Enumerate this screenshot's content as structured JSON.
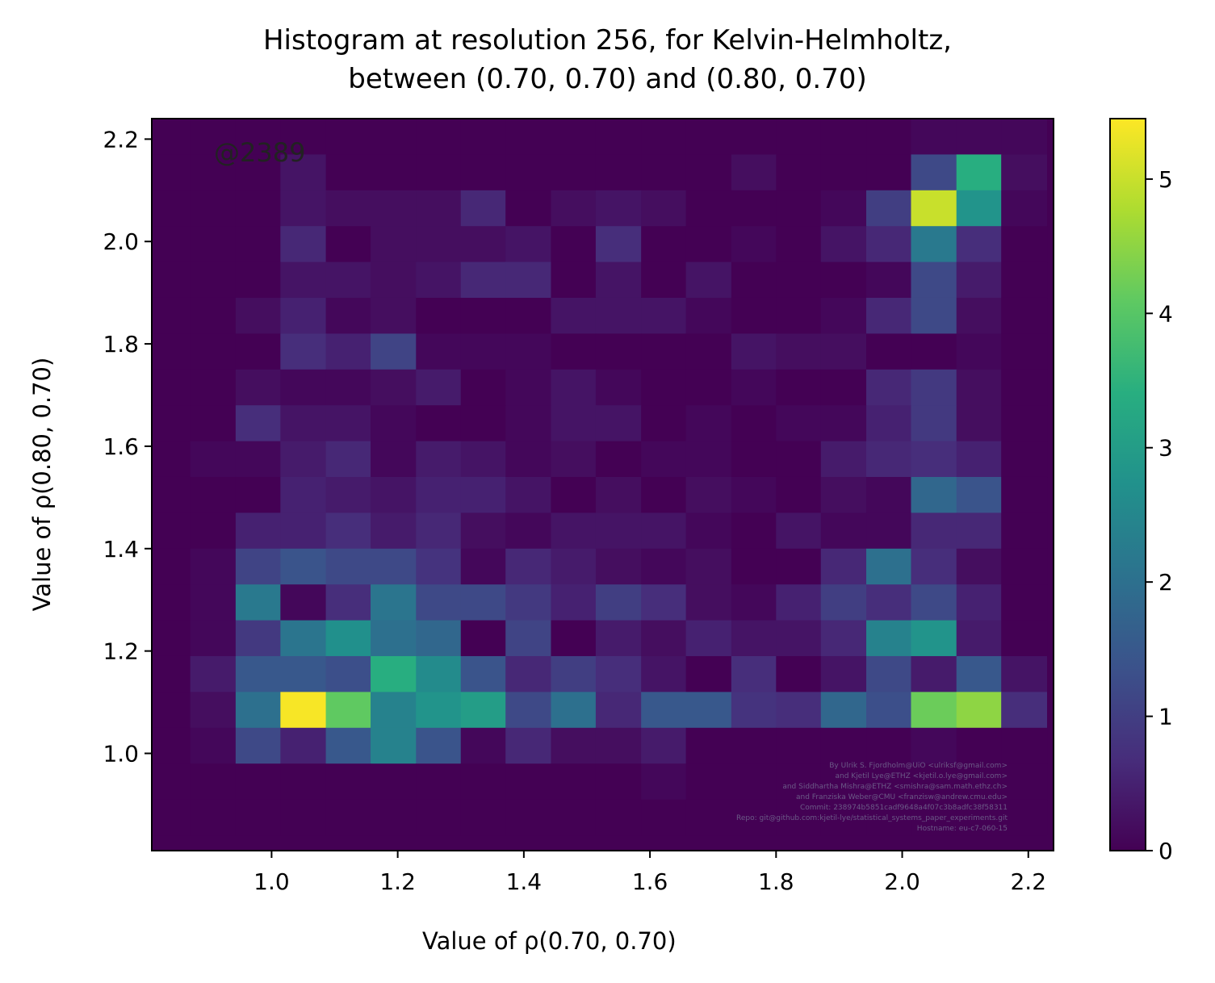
{
  "chart_data": {
    "type": "heatmap",
    "title_lines": [
      "Histogram at resolution 256, for Kelvin-Helmholtz,",
      "between (0.70, 0.70) and (0.80, 0.70)"
    ],
    "xlabel": "Value of ρ(0.70, 0.70)",
    "ylabel": "Value of ρ(0.80, 0.70)",
    "annotation": "@2389",
    "xlim": [
      0.81,
      2.24
    ],
    "ylim": [
      0.81,
      2.24
    ],
    "x_ticks": [
      "1.0",
      "1.2",
      "1.4",
      "1.6",
      "1.8",
      "2.0",
      "2.2"
    ],
    "y_ticks": [
      "1.0",
      "1.2",
      "1.4",
      "1.6",
      "1.8",
      "2.0",
      "2.2"
    ],
    "colorbar": {
      "min": 0,
      "max": 5.45,
      "ticks": [
        "0",
        "1",
        "2",
        "3",
        "4",
        "5"
      ],
      "colormap": "viridis"
    },
    "bins": {
      "x_edges": [
        0.8,
        0.871,
        0.943,
        1.014,
        1.086,
        1.157,
        1.229,
        1.3,
        1.371,
        1.443,
        1.514,
        1.586,
        1.657,
        1.729,
        1.8,
        1.871,
        1.943,
        2.014,
        2.086,
        2.157,
        2.229
      ],
      "y_edges_top_to_bottom": [
        2.24,
        2.17,
        2.1,
        2.03,
        1.96,
        1.89,
        1.82,
        1.75,
        1.68,
        1.61,
        1.54,
        1.47,
        1.4,
        1.33,
        1.26,
        1.19,
        1.12,
        1.05,
        0.98,
        0.91,
        0.84
      ]
    },
    "values_top_to_bottom": [
      [
        0,
        0,
        0,
        0,
        0,
        0,
        0,
        0,
        0,
        0,
        0,
        0,
        0,
        0,
        0,
        0,
        0,
        0.1,
        0.1,
        0.1
      ],
      [
        0,
        0,
        0,
        0.3,
        0,
        0,
        0,
        0,
        0,
        0,
        0,
        0,
        0,
        0.2,
        0,
        0,
        0,
        1.2,
        3.4,
        0.2
      ],
      [
        0,
        0,
        0,
        0.3,
        0.2,
        0.2,
        0.2,
        0.6,
        0,
        0.2,
        0.3,
        0.2,
        0,
        0,
        0,
        0.1,
        1.0,
        5.0,
        2.8,
        0.1
      ],
      [
        0,
        0,
        0,
        0.6,
        0,
        0.2,
        0.2,
        0.2,
        0.3,
        0,
        0.7,
        0,
        0,
        0.1,
        0,
        0.3,
        0.6,
        2.2,
        0.7,
        0
      ],
      [
        0,
        0,
        0,
        0.3,
        0.3,
        0.2,
        0.3,
        0.6,
        0.6,
        0,
        0.3,
        0,
        0.3,
        0,
        0,
        0,
        0.1,
        1.2,
        0.4,
        0
      ],
      [
        0,
        0,
        0.2,
        0.5,
        0.1,
        0.2,
        0,
        0,
        0,
        0.3,
        0.3,
        0.3,
        0.1,
        0,
        0,
        0.1,
        0.6,
        1.2,
        0.2,
        0
      ],
      [
        0,
        0,
        0,
        0.7,
        0.5,
        1.1,
        0.1,
        0.1,
        0.1,
        0,
        0,
        0,
        0,
        0.3,
        0.2,
        0.2,
        0,
        0,
        0.1,
        0
      ],
      [
        0,
        0,
        0.2,
        0.1,
        0.1,
        0.2,
        0.4,
        0,
        0.1,
        0.3,
        0.1,
        0,
        0,
        0.1,
        0,
        0,
        0.6,
        0.9,
        0.2,
        0
      ],
      [
        0,
        0,
        0.7,
        0.3,
        0.3,
        0.1,
        0,
        0,
        0.1,
        0.3,
        0.3,
        0,
        0.1,
        0,
        0.1,
        0.1,
        0.5,
        0.9,
        0.2,
        0
      ],
      [
        0,
        0.1,
        0.1,
        0.4,
        0.6,
        0.1,
        0.4,
        0.3,
        0.1,
        0.2,
        0,
        0.1,
        0.1,
        0,
        0,
        0.4,
        0.6,
        0.7,
        0.5,
        0
      ],
      [
        0,
        0,
        0,
        0.5,
        0.4,
        0.3,
        0.5,
        0.5,
        0.3,
        0,
        0.2,
        0,
        0.2,
        0.1,
        0,
        0.2,
        0.1,
        1.8,
        1.4,
        0
      ],
      [
        0,
        0,
        0.5,
        0.5,
        0.7,
        0.4,
        0.6,
        0.2,
        0.1,
        0.3,
        0.3,
        0.3,
        0.1,
        0,
        0.3,
        0.1,
        0.1,
        0.6,
        0.6,
        0
      ],
      [
        0,
        0.1,
        1.1,
        1.4,
        1.2,
        1.2,
        0.8,
        0.1,
        0.6,
        0.4,
        0.2,
        0.1,
        0.2,
        0,
        0,
        0.6,
        2.0,
        0.7,
        0.2,
        0
      ],
      [
        0,
        0.1,
        2.2,
        0.1,
        0.7,
        2.1,
        1.2,
        1.2,
        0.9,
        0.5,
        1.0,
        0.7,
        0.2,
        0.1,
        0.5,
        1.0,
        0.7,
        1.2,
        0.5,
        0
      ],
      [
        0,
        0.1,
        0.9,
        2.1,
        2.7,
        2.0,
        1.8,
        0,
        1.1,
        0,
        0.4,
        0.2,
        0.5,
        0.3,
        0.3,
        0.6,
        2.4,
        2.8,
        0.4,
        0
      ],
      [
        0,
        0.4,
        1.5,
        1.5,
        1.3,
        3.4,
        2.6,
        1.4,
        0.6,
        1.0,
        0.7,
        0.3,
        0,
        0.7,
        0,
        0.3,
        1.2,
        0.4,
        1.5,
        0.3
      ],
      [
        0,
        0.2,
        2.0,
        5.4,
        4.1,
        2.4,
        2.8,
        3.0,
        1.2,
        2.0,
        0.6,
        1.5,
        1.5,
        0.8,
        0.7,
        1.8,
        1.3,
        4.2,
        4.5,
        0.7
      ],
      [
        0,
        0.1,
        1.2,
        0.5,
        1.5,
        2.4,
        1.4,
        0.1,
        0.6,
        0.2,
        0.2,
        0.4,
        0,
        0,
        0,
        0,
        0,
        0.1,
        0,
        0
      ],
      [
        0,
        0,
        0,
        0,
        0,
        0,
        0,
        0,
        0,
        0,
        0,
        0.1,
        0,
        0,
        0,
        0,
        0,
        0,
        0,
        0
      ],
      [
        0,
        0,
        0,
        0,
        0,
        0,
        0,
        0,
        0,
        0,
        0,
        0,
        0,
        0,
        0,
        0,
        0,
        0,
        0,
        0
      ]
    ]
  },
  "credits": [
    "By Ulrik S. Fjordholm@UiO <ulriksf@gmail.com>",
    "and Kjetil Lye@ETHZ <kjetil.o.lye@gmail.com>",
    "and Siddhartha Mishra@ETHZ <smishra@sam.math.ethz.ch>",
    "and Franziska Weber@CMU <franzisw@andrew.cmu.edu>",
    "Commit: 238974b5851cadf9648a4f07c3b8adfc38f58311",
    "Repo: git@github.com:kjetil-lye/statistical_systems_paper_experiments.git",
    "Hostname: eu-c7-060-15"
  ]
}
